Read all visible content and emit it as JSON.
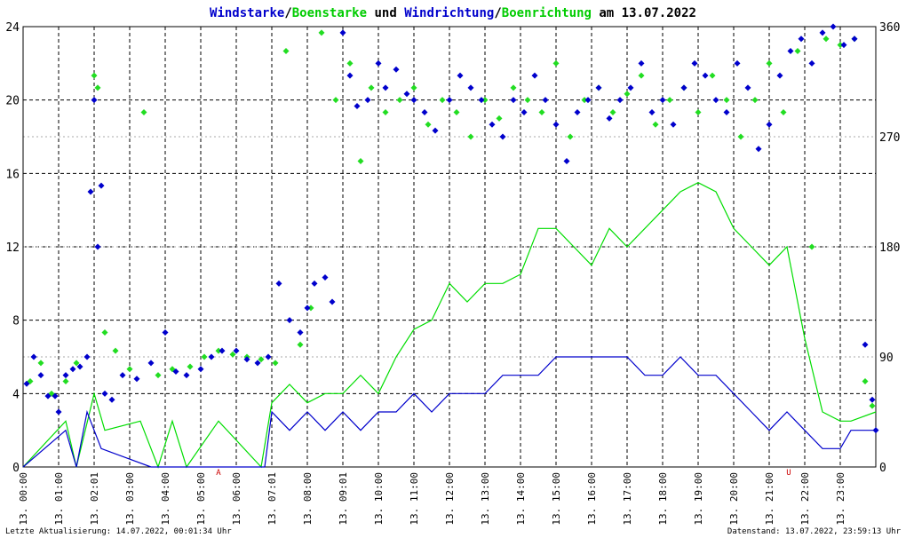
{
  "chart_data": {
    "type": "line",
    "title_parts": [
      {
        "text": "Windstarke",
        "color": "#0000cc"
      },
      {
        "text": "/",
        "color": "#000000"
      },
      {
        "text": "Boenstarke",
        "color": "#00cc00"
      },
      {
        "text": " und ",
        "color": "#000000"
      },
      {
        "text": "Windrichtung",
        "color": "#0000cc"
      },
      {
        "text": "/",
        "color": "#000000"
      },
      {
        "text": "Boenrichtung",
        "color": "#00cc00"
      },
      {
        "text": " am 13.07.2022",
        "color": "#000000"
      }
    ],
    "left_axis": {
      "ylim": [
        0,
        24
      ],
      "ticks": [
        "0",
        "4",
        "8",
        "12",
        "16",
        "20",
        "24"
      ]
    },
    "right_axis": {
      "ylim": [
        0,
        360
      ],
      "ticks": [
        "0",
        "90",
        "180",
        "270",
        "360"
      ]
    },
    "x_axis": {
      "xlim": [
        0,
        24
      ],
      "tick_labels": [
        "13. 00:00",
        "13. 01:00",
        "13. 02:01",
        "13. 03:00",
        "13. 04:00",
        "13. 05:00",
        "13. 06:00",
        "13. 07:01",
        "13. 08:00",
        "13. 09:01",
        "13. 10:00",
        "13. 11:00",
        "13. 12:00",
        "13. 13:00",
        "13. 14:00",
        "13. 15:00",
        "13. 16:00",
        "13. 17:00",
        "13. 18:00",
        "13. 19:00",
        "13. 20:00",
        "13. 21:00",
        "13. 22:00",
        "13. 23:00"
      ]
    },
    "grid": true,
    "markers": [
      {
        "text": "A",
        "hour": 5.5,
        "color": "#cc0000"
      },
      {
        "text": "U",
        "hour": 21.55,
        "color": "#cc0000"
      }
    ],
    "series": [
      {
        "name": "Windstarke",
        "kind": "line",
        "color": "#0000cc",
        "points": [
          [
            0,
            0
          ],
          [
            1.2,
            2
          ],
          [
            1.5,
            0
          ],
          [
            1.8,
            3
          ],
          [
            2.2,
            1
          ],
          [
            3.6,
            0
          ],
          [
            4.1,
            0
          ],
          [
            6.8,
            0
          ],
          [
            7.0,
            3
          ],
          [
            7.5,
            2
          ],
          [
            8,
            3
          ],
          [
            8.5,
            2
          ],
          [
            9,
            3
          ],
          [
            9.5,
            2
          ],
          [
            10,
            3
          ],
          [
            10.5,
            3
          ],
          [
            11,
            4
          ],
          [
            11.5,
            3
          ],
          [
            12,
            4
          ],
          [
            12.5,
            4
          ],
          [
            13,
            4
          ],
          [
            13.5,
            5
          ],
          [
            14,
            5
          ],
          [
            14.5,
            5
          ],
          [
            15,
            6
          ],
          [
            15.5,
            6
          ],
          [
            16,
            6
          ],
          [
            16.5,
            6
          ],
          [
            17,
            6
          ],
          [
            17.5,
            5
          ],
          [
            18,
            5
          ],
          [
            18.5,
            6
          ],
          [
            19,
            5
          ],
          [
            19.5,
            5
          ],
          [
            20,
            4
          ],
          [
            20.5,
            3
          ],
          [
            21,
            2
          ],
          [
            21.5,
            3
          ],
          [
            22,
            2
          ],
          [
            22.5,
            1
          ],
          [
            23,
            1
          ],
          [
            23.3,
            2
          ],
          [
            23.7,
            2
          ],
          [
            24,
            2
          ]
        ]
      },
      {
        "name": "Boenstarke",
        "kind": "line",
        "color": "#00dd00",
        "points": [
          [
            0,
            0
          ],
          [
            1.2,
            2.5
          ],
          [
            1.5,
            0
          ],
          [
            2,
            4
          ],
          [
            2.3,
            2
          ],
          [
            3.3,
            2.5
          ],
          [
            3.8,
            0
          ],
          [
            4.2,
            2.5
          ],
          [
            4.6,
            0
          ],
          [
            5.5,
            2.5
          ],
          [
            6.7,
            0
          ],
          [
            7,
            3.5
          ],
          [
            7.5,
            4.5
          ],
          [
            8,
            3.5
          ],
          [
            8.5,
            4
          ],
          [
            9,
            4
          ],
          [
            9.5,
            5
          ],
          [
            10,
            4
          ],
          [
            10.5,
            6
          ],
          [
            11,
            7.5
          ],
          [
            11.5,
            8
          ],
          [
            12,
            10
          ],
          [
            12.5,
            9
          ],
          [
            13,
            10
          ],
          [
            13.5,
            10
          ],
          [
            14,
            10.5
          ],
          [
            14.5,
            13
          ],
          [
            15,
            13
          ],
          [
            15.5,
            12
          ],
          [
            16,
            11
          ],
          [
            16.5,
            13
          ],
          [
            17,
            12
          ],
          [
            17.5,
            13
          ],
          [
            18,
            14
          ],
          [
            18.5,
            15
          ],
          [
            19,
            15.5
          ],
          [
            19.5,
            15
          ],
          [
            20,
            13
          ],
          [
            20.5,
            12
          ],
          [
            21,
            11
          ],
          [
            21.5,
            12
          ],
          [
            22,
            7
          ],
          [
            22.5,
            3
          ],
          [
            23,
            2.5
          ],
          [
            23.3,
            2.5
          ],
          [
            24,
            3
          ]
        ]
      },
      {
        "name": "Windrichtung",
        "kind": "scatter",
        "color": "#0000cc",
        "points": [
          [
            0.1,
            68
          ],
          [
            0.3,
            90
          ],
          [
            0.5,
            75
          ],
          [
            0.7,
            58
          ],
          [
            0.9,
            58
          ],
          [
            1.0,
            45
          ],
          [
            1.2,
            75
          ],
          [
            1.4,
            80
          ],
          [
            1.6,
            82
          ],
          [
            1.8,
            90
          ],
          [
            1.9,
            225
          ],
          [
            2.0,
            300
          ],
          [
            2.1,
            180
          ],
          [
            2.2,
            230
          ],
          [
            2.3,
            60
          ],
          [
            2.5,
            55
          ],
          [
            2.8,
            75
          ],
          [
            3.2,
            72
          ],
          [
            3.6,
            85
          ],
          [
            4.0,
            110
          ],
          [
            4.3,
            78
          ],
          [
            4.6,
            75
          ],
          [
            5.0,
            80
          ],
          [
            5.3,
            90
          ],
          [
            5.6,
            95
          ],
          [
            6.0,
            95
          ],
          [
            6.3,
            88
          ],
          [
            6.6,
            85
          ],
          [
            6.9,
            90
          ],
          [
            7.2,
            150
          ],
          [
            7.5,
            120
          ],
          [
            7.8,
            110
          ],
          [
            8.0,
            130
          ],
          [
            8.2,
            150
          ],
          [
            8.5,
            155
          ],
          [
            8.7,
            135
          ],
          [
            9.0,
            355
          ],
          [
            9.2,
            320
          ],
          [
            9.4,
            295
          ],
          [
            9.7,
            300
          ],
          [
            10.0,
            330
          ],
          [
            10.2,
            310
          ],
          [
            10.5,
            325
          ],
          [
            10.8,
            305
          ],
          [
            11.0,
            300
          ],
          [
            11.3,
            290
          ],
          [
            11.6,
            275
          ],
          [
            12.0,
            300
          ],
          [
            12.3,
            320
          ],
          [
            12.6,
            310
          ],
          [
            12.9,
            300
          ],
          [
            13.2,
            280
          ],
          [
            13.5,
            270
          ],
          [
            13.8,
            300
          ],
          [
            14.1,
            290
          ],
          [
            14.4,
            320
          ],
          [
            14.7,
            300
          ],
          [
            15.0,
            280
          ],
          [
            15.3,
            250
          ],
          [
            15.6,
            290
          ],
          [
            15.9,
            300
          ],
          [
            16.2,
            310
          ],
          [
            16.5,
            285
          ],
          [
            16.8,
            300
          ],
          [
            17.1,
            310
          ],
          [
            17.4,
            330
          ],
          [
            17.7,
            290
          ],
          [
            18.0,
            300
          ],
          [
            18.3,
            280
          ],
          [
            18.6,
            310
          ],
          [
            18.9,
            330
          ],
          [
            19.2,
            320
          ],
          [
            19.5,
            300
          ],
          [
            19.8,
            290
          ],
          [
            20.1,
            330
          ],
          [
            20.4,
            310
          ],
          [
            20.7,
            260
          ],
          [
            21.0,
            280
          ],
          [
            21.3,
            320
          ],
          [
            21.6,
            340
          ],
          [
            21.9,
            350
          ],
          [
            22.2,
            330
          ],
          [
            22.5,
            355
          ],
          [
            22.8,
            360
          ],
          [
            23.1,
            345
          ],
          [
            23.4,
            350
          ],
          [
            23.7,
            100
          ],
          [
            23.9,
            55
          ],
          [
            24.0,
            30
          ]
        ]
      },
      {
        "name": "Boenrichtung",
        "kind": "scatter",
        "color": "#22dd22",
        "points": [
          [
            0.2,
            70
          ],
          [
            0.5,
            85
          ],
          [
            0.8,
            60
          ],
          [
            1.2,
            70
          ],
          [
            1.5,
            85
          ],
          [
            2.0,
            320
          ],
          [
            2.1,
            310
          ],
          [
            2.3,
            110
          ],
          [
            2.6,
            95
          ],
          [
            3.0,
            80
          ],
          [
            3.4,
            290
          ],
          [
            3.8,
            75
          ],
          [
            4.2,
            80
          ],
          [
            4.7,
            82
          ],
          [
            5.1,
            90
          ],
          [
            5.5,
            95
          ],
          [
            5.9,
            92
          ],
          [
            6.3,
            90
          ],
          [
            6.7,
            88
          ],
          [
            7.1,
            85
          ],
          [
            7.4,
            340
          ],
          [
            7.8,
            100
          ],
          [
            8.1,
            130
          ],
          [
            8.4,
            355
          ],
          [
            8.8,
            300
          ],
          [
            9.2,
            330
          ],
          [
            9.5,
            250
          ],
          [
            9.8,
            310
          ],
          [
            10.2,
            290
          ],
          [
            10.6,
            300
          ],
          [
            11.0,
            310
          ],
          [
            11.4,
            280
          ],
          [
            11.8,
            300
          ],
          [
            12.2,
            290
          ],
          [
            12.6,
            270
          ],
          [
            13.0,
            300
          ],
          [
            13.4,
            285
          ],
          [
            13.8,
            310
          ],
          [
            14.2,
            300
          ],
          [
            14.6,
            290
          ],
          [
            15.0,
            330
          ],
          [
            15.4,
            270
          ],
          [
            15.8,
            300
          ],
          [
            16.2,
            310
          ],
          [
            16.6,
            290
          ],
          [
            17.0,
            305
          ],
          [
            17.4,
            320
          ],
          [
            17.8,
            280
          ],
          [
            18.2,
            300
          ],
          [
            18.6,
            310
          ],
          [
            19.0,
            290
          ],
          [
            19.4,
            320
          ],
          [
            19.8,
            300
          ],
          [
            20.2,
            270
          ],
          [
            20.6,
            300
          ],
          [
            21.0,
            330
          ],
          [
            21.4,
            290
          ],
          [
            21.8,
            340
          ],
          [
            22.2,
            180
          ],
          [
            22.6,
            350
          ],
          [
            23.0,
            345
          ],
          [
            23.4,
            350
          ],
          [
            23.7,
            70
          ],
          [
            23.9,
            50
          ]
        ]
      }
    ]
  },
  "footer": {
    "left": "Letzte Aktualisierung: 14.07.2022, 00:01:34 Uhr",
    "right": "Datenstand: 13.07.2022, 23:59:13 Uhr"
  }
}
